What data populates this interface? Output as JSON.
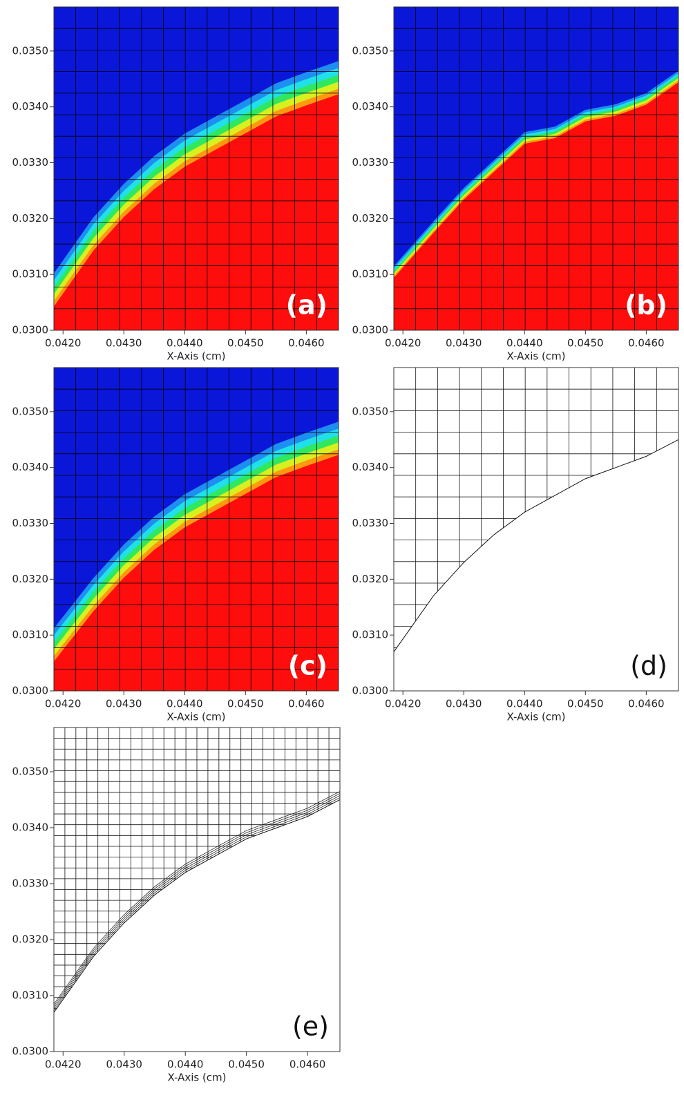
{
  "chart_data": [
    {
      "type": "field",
      "panel_label": "(a)",
      "xlabel": "X-Axis (cm)",
      "mesh": "coarse",
      "colors": {
        "above": "#0b17d8",
        "below": "#fe0d0d"
      },
      "x": [
        0.04185,
        0.0425,
        0.043,
        0.0435,
        0.044,
        0.0445,
        0.045,
        0.0455,
        0.046,
        0.04653
      ],
      "y": [
        0.0306,
        0.0316,
        0.0322,
        0.0327,
        0.0331,
        0.0334,
        0.0337,
        0.034,
        0.0342,
        0.0344
      ],
      "xlim": [
        0.04185,
        0.04653
      ],
      "ylim": [
        0.03,
        0.03579
      ],
      "xticks": [
        {
          "value": 0.042,
          "label": "0.0420"
        },
        {
          "value": 0.043,
          "label": "0.0430"
        },
        {
          "value": 0.044,
          "label": "0.0440"
        },
        {
          "value": 0.045,
          "label": "0.0450"
        },
        {
          "value": 0.046,
          "label": "0.0460"
        }
      ],
      "yticks": [
        {
          "value": 0.03,
          "label": "0.0300"
        },
        {
          "value": 0.031,
          "label": "0.0310"
        },
        {
          "value": 0.032,
          "label": "0.0320"
        },
        {
          "value": 0.033,
          "label": "0.0330"
        },
        {
          "value": 0.034,
          "label": "0.0340"
        },
        {
          "value": 0.035,
          "label": "0.0350"
        }
      ]
    },
    {
      "type": "field-sharp",
      "panel_label": "(b)",
      "xlabel": "X-Axis (cm)",
      "mesh": "coarse",
      "colors": {
        "above": "#0b17d8",
        "below": "#fe0d0d"
      },
      "x": [
        0.04185,
        0.0425,
        0.043,
        0.0435,
        0.044,
        0.0445,
        0.045,
        0.0455,
        0.046,
        0.04653
      ],
      "y": [
        0.031,
        0.0318,
        0.0324,
        0.0329,
        0.0334,
        0.0335,
        0.0338,
        0.0339,
        0.0341,
        0.0345
      ],
      "xlim": [
        0.04185,
        0.04653
      ],
      "ylim": [
        0.03,
        0.03579
      ],
      "xticks": [
        {
          "value": 0.042,
          "label": "0.0420"
        },
        {
          "value": 0.043,
          "label": "0.0430"
        },
        {
          "value": 0.044,
          "label": "0.0440"
        },
        {
          "value": 0.045,
          "label": "0.0450"
        },
        {
          "value": 0.046,
          "label": "0.0460"
        }
      ],
      "yticks": [
        {
          "value": 0.03,
          "label": "0.0300"
        },
        {
          "value": 0.031,
          "label": "0.0310"
        },
        {
          "value": 0.032,
          "label": "0.0320"
        },
        {
          "value": 0.033,
          "label": "0.0330"
        },
        {
          "value": 0.034,
          "label": "0.0340"
        },
        {
          "value": 0.035,
          "label": "0.0350"
        }
      ]
    },
    {
      "type": "field",
      "panel_label": "(c)",
      "xlabel": "X-Axis (cm)",
      "mesh": "coarse",
      "colors": {
        "above": "#0b17d8",
        "below": "#fe0d0d"
      },
      "x": [
        0.04185,
        0.0425,
        0.043,
        0.0435,
        0.044,
        0.0445,
        0.045,
        0.0455,
        0.046,
        0.04653
      ],
      "y": [
        0.0307,
        0.0316,
        0.0322,
        0.0327,
        0.0331,
        0.0334,
        0.0337,
        0.034,
        0.0342,
        0.0344
      ],
      "xlim": [
        0.04185,
        0.04653
      ],
      "ylim": [
        0.03,
        0.03579
      ],
      "xticks": [
        {
          "value": 0.042,
          "label": "0.0420"
        },
        {
          "value": 0.043,
          "label": "0.0430"
        },
        {
          "value": 0.044,
          "label": "0.0440"
        },
        {
          "value": 0.045,
          "label": "0.0450"
        },
        {
          "value": 0.046,
          "label": "0.0460"
        }
      ],
      "yticks": [
        {
          "value": 0.03,
          "label": "0.0300"
        },
        {
          "value": 0.031,
          "label": "0.0310"
        },
        {
          "value": 0.032,
          "label": "0.0320"
        },
        {
          "value": 0.033,
          "label": "0.0330"
        },
        {
          "value": 0.034,
          "label": "0.0340"
        },
        {
          "value": 0.035,
          "label": "0.0350"
        }
      ]
    },
    {
      "type": "mesh",
      "panel_label": "(d)",
      "xlabel": "X-Axis (cm)",
      "mesh": "coarse",
      "x": [
        0.04185,
        0.0425,
        0.043,
        0.0435,
        0.044,
        0.0445,
        0.045,
        0.0455,
        0.046,
        0.04653
      ],
      "y": [
        0.0307,
        0.0317,
        0.0323,
        0.0328,
        0.0332,
        0.0335,
        0.0338,
        0.034,
        0.0342,
        0.0345
      ],
      "xlim": [
        0.04185,
        0.04653
      ],
      "ylim": [
        0.03,
        0.03579
      ],
      "xticks": [
        {
          "value": 0.042,
          "label": "0.0420"
        },
        {
          "value": 0.043,
          "label": "0.0430"
        },
        {
          "value": 0.044,
          "label": "0.0440"
        },
        {
          "value": 0.045,
          "label": "0.0450"
        },
        {
          "value": 0.046,
          "label": "0.0460"
        }
      ],
      "yticks": [
        {
          "value": 0.03,
          "label": "0.0300"
        },
        {
          "value": 0.031,
          "label": "0.0310"
        },
        {
          "value": 0.032,
          "label": "0.0320"
        },
        {
          "value": 0.033,
          "label": "0.0330"
        },
        {
          "value": 0.034,
          "label": "0.0340"
        },
        {
          "value": 0.035,
          "label": "0.0350"
        }
      ]
    },
    {
      "type": "mesh",
      "panel_label": "(e)",
      "xlabel": "X-Axis (cm)",
      "mesh": "fine",
      "x": [
        0.04185,
        0.0425,
        0.043,
        0.0435,
        0.044,
        0.0445,
        0.045,
        0.0455,
        0.046,
        0.04653
      ],
      "y": [
        0.0307,
        0.0317,
        0.0323,
        0.0328,
        0.0332,
        0.0335,
        0.0338,
        0.034,
        0.0342,
        0.0345
      ],
      "xlim": [
        0.04185,
        0.04653
      ],
      "ylim": [
        0.03,
        0.03579
      ],
      "xticks": [
        {
          "value": 0.042,
          "label": "0.0420"
        },
        {
          "value": 0.043,
          "label": "0.0430"
        },
        {
          "value": 0.044,
          "label": "0.0440"
        },
        {
          "value": 0.045,
          "label": "0.0450"
        },
        {
          "value": 0.046,
          "label": "0.0460"
        }
      ],
      "yticks": [
        {
          "value": 0.03,
          "label": "0.0300"
        },
        {
          "value": 0.031,
          "label": "0.0310"
        },
        {
          "value": 0.032,
          "label": "0.0320"
        },
        {
          "value": 0.033,
          "label": "0.0330"
        },
        {
          "value": 0.034,
          "label": "0.0340"
        },
        {
          "value": 0.035,
          "label": "0.0350"
        }
      ]
    }
  ]
}
